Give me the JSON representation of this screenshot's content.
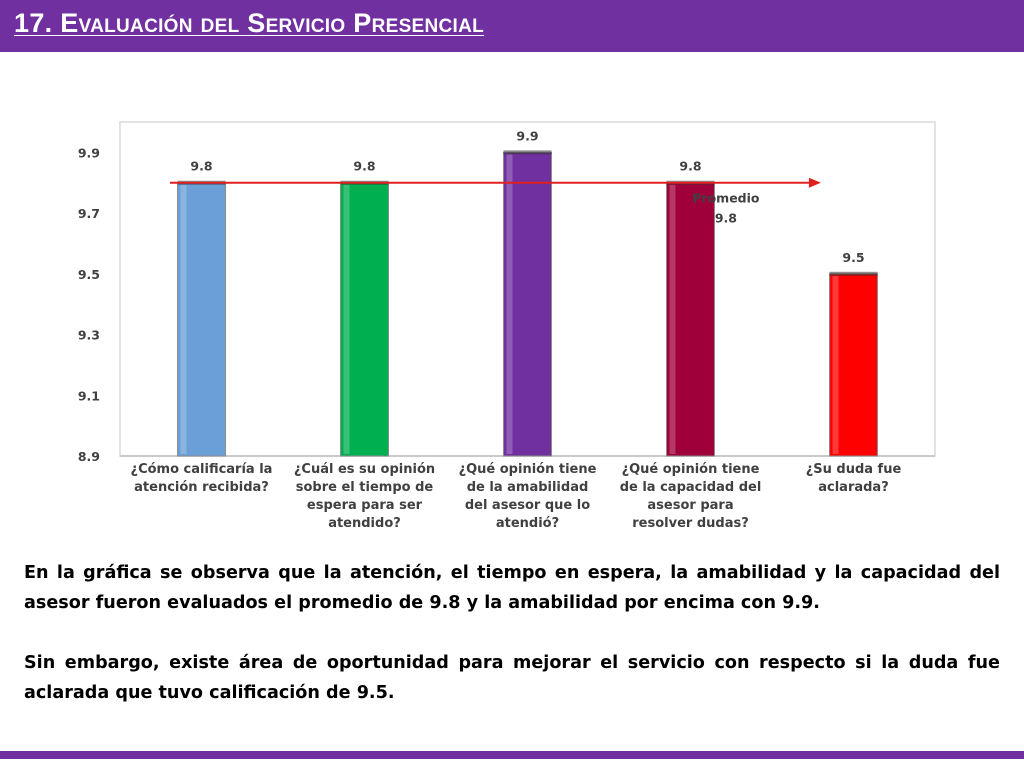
{
  "slide": {
    "title": "17. Evaluación del Servicio Presencial"
  },
  "colors": {
    "accent": "#7030a0",
    "average_line": "#e01f1f"
  },
  "chart_data": {
    "type": "bar",
    "categories": [
      [
        "¿Cómo calificaría la",
        "atención recibida?"
      ],
      [
        "¿Cuál es su opinión",
        "sobre el tiempo de",
        "espera para ser",
        "atendido?"
      ],
      [
        "¿Qué opinión tiene",
        "de la amabilidad",
        "del asesor que lo",
        "atendió?"
      ],
      [
        "¿Qué opinión tiene",
        "de la capacidad del",
        "asesor para",
        "resolver dudas?"
      ],
      [
        "¿Su duda fue",
        "aclarada?"
      ]
    ],
    "values": [
      9.8,
      9.8,
      9.9,
      9.8,
      9.5
    ],
    "data_labels": [
      "9.8",
      "9.8",
      "9.9",
      "9.8",
      "9.5"
    ],
    "bar_colors": [
      "#6a9fd8",
      "#00b050",
      "#7030a0",
      "#a0003a",
      "#ff0000"
    ],
    "ylim": [
      8.9,
      10.0
    ],
    "yticks": [
      "8.9",
      "9.1",
      "9.3",
      "9.5",
      "9.7",
      "9.9"
    ],
    "average": {
      "value": 9.8,
      "label_lines": [
        "Promedio",
        "9.8"
      ]
    },
    "grid": false,
    "legend": "none"
  },
  "text": {
    "paragraph_1": "En la gráfica se observa que la atención, el tiempo en espera, la amabilidad y la capacidad del asesor  fueron evaluados el promedio de 9.8 y la amabilidad por encima con 9.9.",
    "paragraph_2": "Sin embargo, existe área de oportunidad para mejorar el servicio con respecto si la duda fue aclarada que tuvo calificación de 9.5."
  }
}
